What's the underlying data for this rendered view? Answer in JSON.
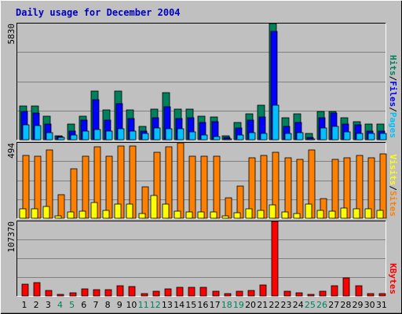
{
  "title": "Daily usage for December 2004",
  "colors": {
    "background": "#c0c0c0",
    "title": "#0000c0",
    "hits": "#00805c",
    "files": "#0000ff",
    "pages": "#00c0ff",
    "visits": "#ffff00",
    "sites": "#ff8000",
    "kbytes": "#ff0000",
    "weekend_label": "#00805c",
    "weekday_label": "#000000"
  },
  "chart_data": [
    {
      "type": "bar",
      "panel": "hits-files-pages",
      "ymax_label": "5830",
      "ylim": [
        0,
        5830
      ],
      "legend": [
        "Pages",
        "Files",
        "Hits"
      ],
      "legend_separator": "/",
      "categories": [
        "1",
        "2",
        "3",
        "4",
        "5",
        "6",
        "7",
        "8",
        "9",
        "10",
        "11",
        "12",
        "13",
        "14",
        "15",
        "16",
        "17",
        "18",
        "19",
        "20",
        "21",
        "22",
        "23",
        "24",
        "25",
        "26",
        "27",
        "28",
        "29",
        "30",
        "31"
      ],
      "weekend": [
        4,
        5,
        11,
        12,
        18,
        19,
        25,
        26
      ],
      "series": [
        {
          "name": "Hits",
          "values": [
            1700,
            1700,
            1200,
            200,
            800,
            1200,
            2450,
            1500,
            2450,
            1500,
            650,
            1550,
            2350,
            1550,
            1550,
            1200,
            1150,
            200,
            850,
            1300,
            1750,
            5830,
            1100,
            1300,
            300,
            1400,
            1400,
            1100,
            900,
            800,
            800
          ]
        },
        {
          "name": "Files",
          "values": [
            1400,
            1350,
            800,
            150,
            450,
            1000,
            2000,
            1000,
            1800,
            1050,
            450,
            1100,
            1650,
            1050,
            1100,
            850,
            900,
            100,
            600,
            1000,
            1150,
            5450,
            650,
            850,
            100,
            1100,
            1350,
            800,
            750,
            450,
            450
          ]
        },
        {
          "name": "Pages",
          "values": [
            750,
            700,
            350,
            100,
            250,
            450,
            500,
            450,
            550,
            450,
            300,
            600,
            550,
            550,
            400,
            250,
            150,
            50,
            250,
            350,
            300,
            1750,
            300,
            350,
            50,
            600,
            650,
            400,
            300,
            300,
            300
          ]
        }
      ]
    },
    {
      "type": "bar",
      "panel": "sites-visits",
      "ymax_label": "494",
      "ylim": [
        0,
        494
      ],
      "legend": [
        "Sites",
        "Visits"
      ],
      "legend_separator": "/",
      "categories": [
        "1",
        "2",
        "3",
        "4",
        "5",
        "6",
        "7",
        "8",
        "9",
        "10",
        "11",
        "12",
        "13",
        "14",
        "15",
        "16",
        "17",
        "18",
        "19",
        "20",
        "21",
        "22",
        "23",
        "24",
        "25",
        "26",
        "27",
        "28",
        "29",
        "30",
        "31"
      ],
      "weekend": [
        4,
        5,
        11,
        12,
        18,
        19,
        25,
        26
      ],
      "series": [
        {
          "name": "Sites",
          "values": [
            414,
            404,
            448,
            154,
            323,
            409,
            470,
            409,
            473,
            473,
            205,
            434,
            467,
            494,
            404,
            409,
            404,
            136,
            209,
            394,
            414,
            433,
            394,
            384,
            448,
            131,
            384,
            394,
            414,
            394,
            424
          ]
        },
        {
          "name": "Visits",
          "values": [
            62,
            62,
            76,
            14,
            43,
            48,
            105,
            52,
            95,
            95,
            33,
            150,
            91,
            48,
            43,
            43,
            43,
            14,
            38,
            62,
            52,
            86,
            43,
            29,
            95,
            52,
            48,
            67,
            62,
            62,
            52
          ]
        }
      ]
    },
    {
      "type": "bar",
      "panel": "kbytes",
      "ymax_label": "107370",
      "ylim": [
        0,
        107370
      ],
      "legend": [
        "KBytes"
      ],
      "categories": [
        "1",
        "2",
        "3",
        "4",
        "5",
        "6",
        "7",
        "8",
        "9",
        "10",
        "11",
        "12",
        "13",
        "14",
        "15",
        "16",
        "17",
        "18",
        "19",
        "20",
        "21",
        "22",
        "23",
        "24",
        "25",
        "26",
        "27",
        "28",
        "29",
        "30",
        "31"
      ],
      "weekend": [
        4,
        5,
        11,
        12,
        18,
        19,
        25,
        26
      ],
      "series": [
        {
          "name": "KBytes",
          "values": [
            17000,
            19500,
            8000,
            2800,
            4500,
            10500,
            9000,
            9000,
            14500,
            13000,
            3000,
            6800,
            10000,
            12800,
            12000,
            12800,
            6800,
            3000,
            7000,
            7800,
            16000,
            107370,
            6500,
            5000,
            2500,
            7000,
            15000,
            26500,
            14500,
            3200,
            3200
          ]
        }
      ]
    }
  ]
}
